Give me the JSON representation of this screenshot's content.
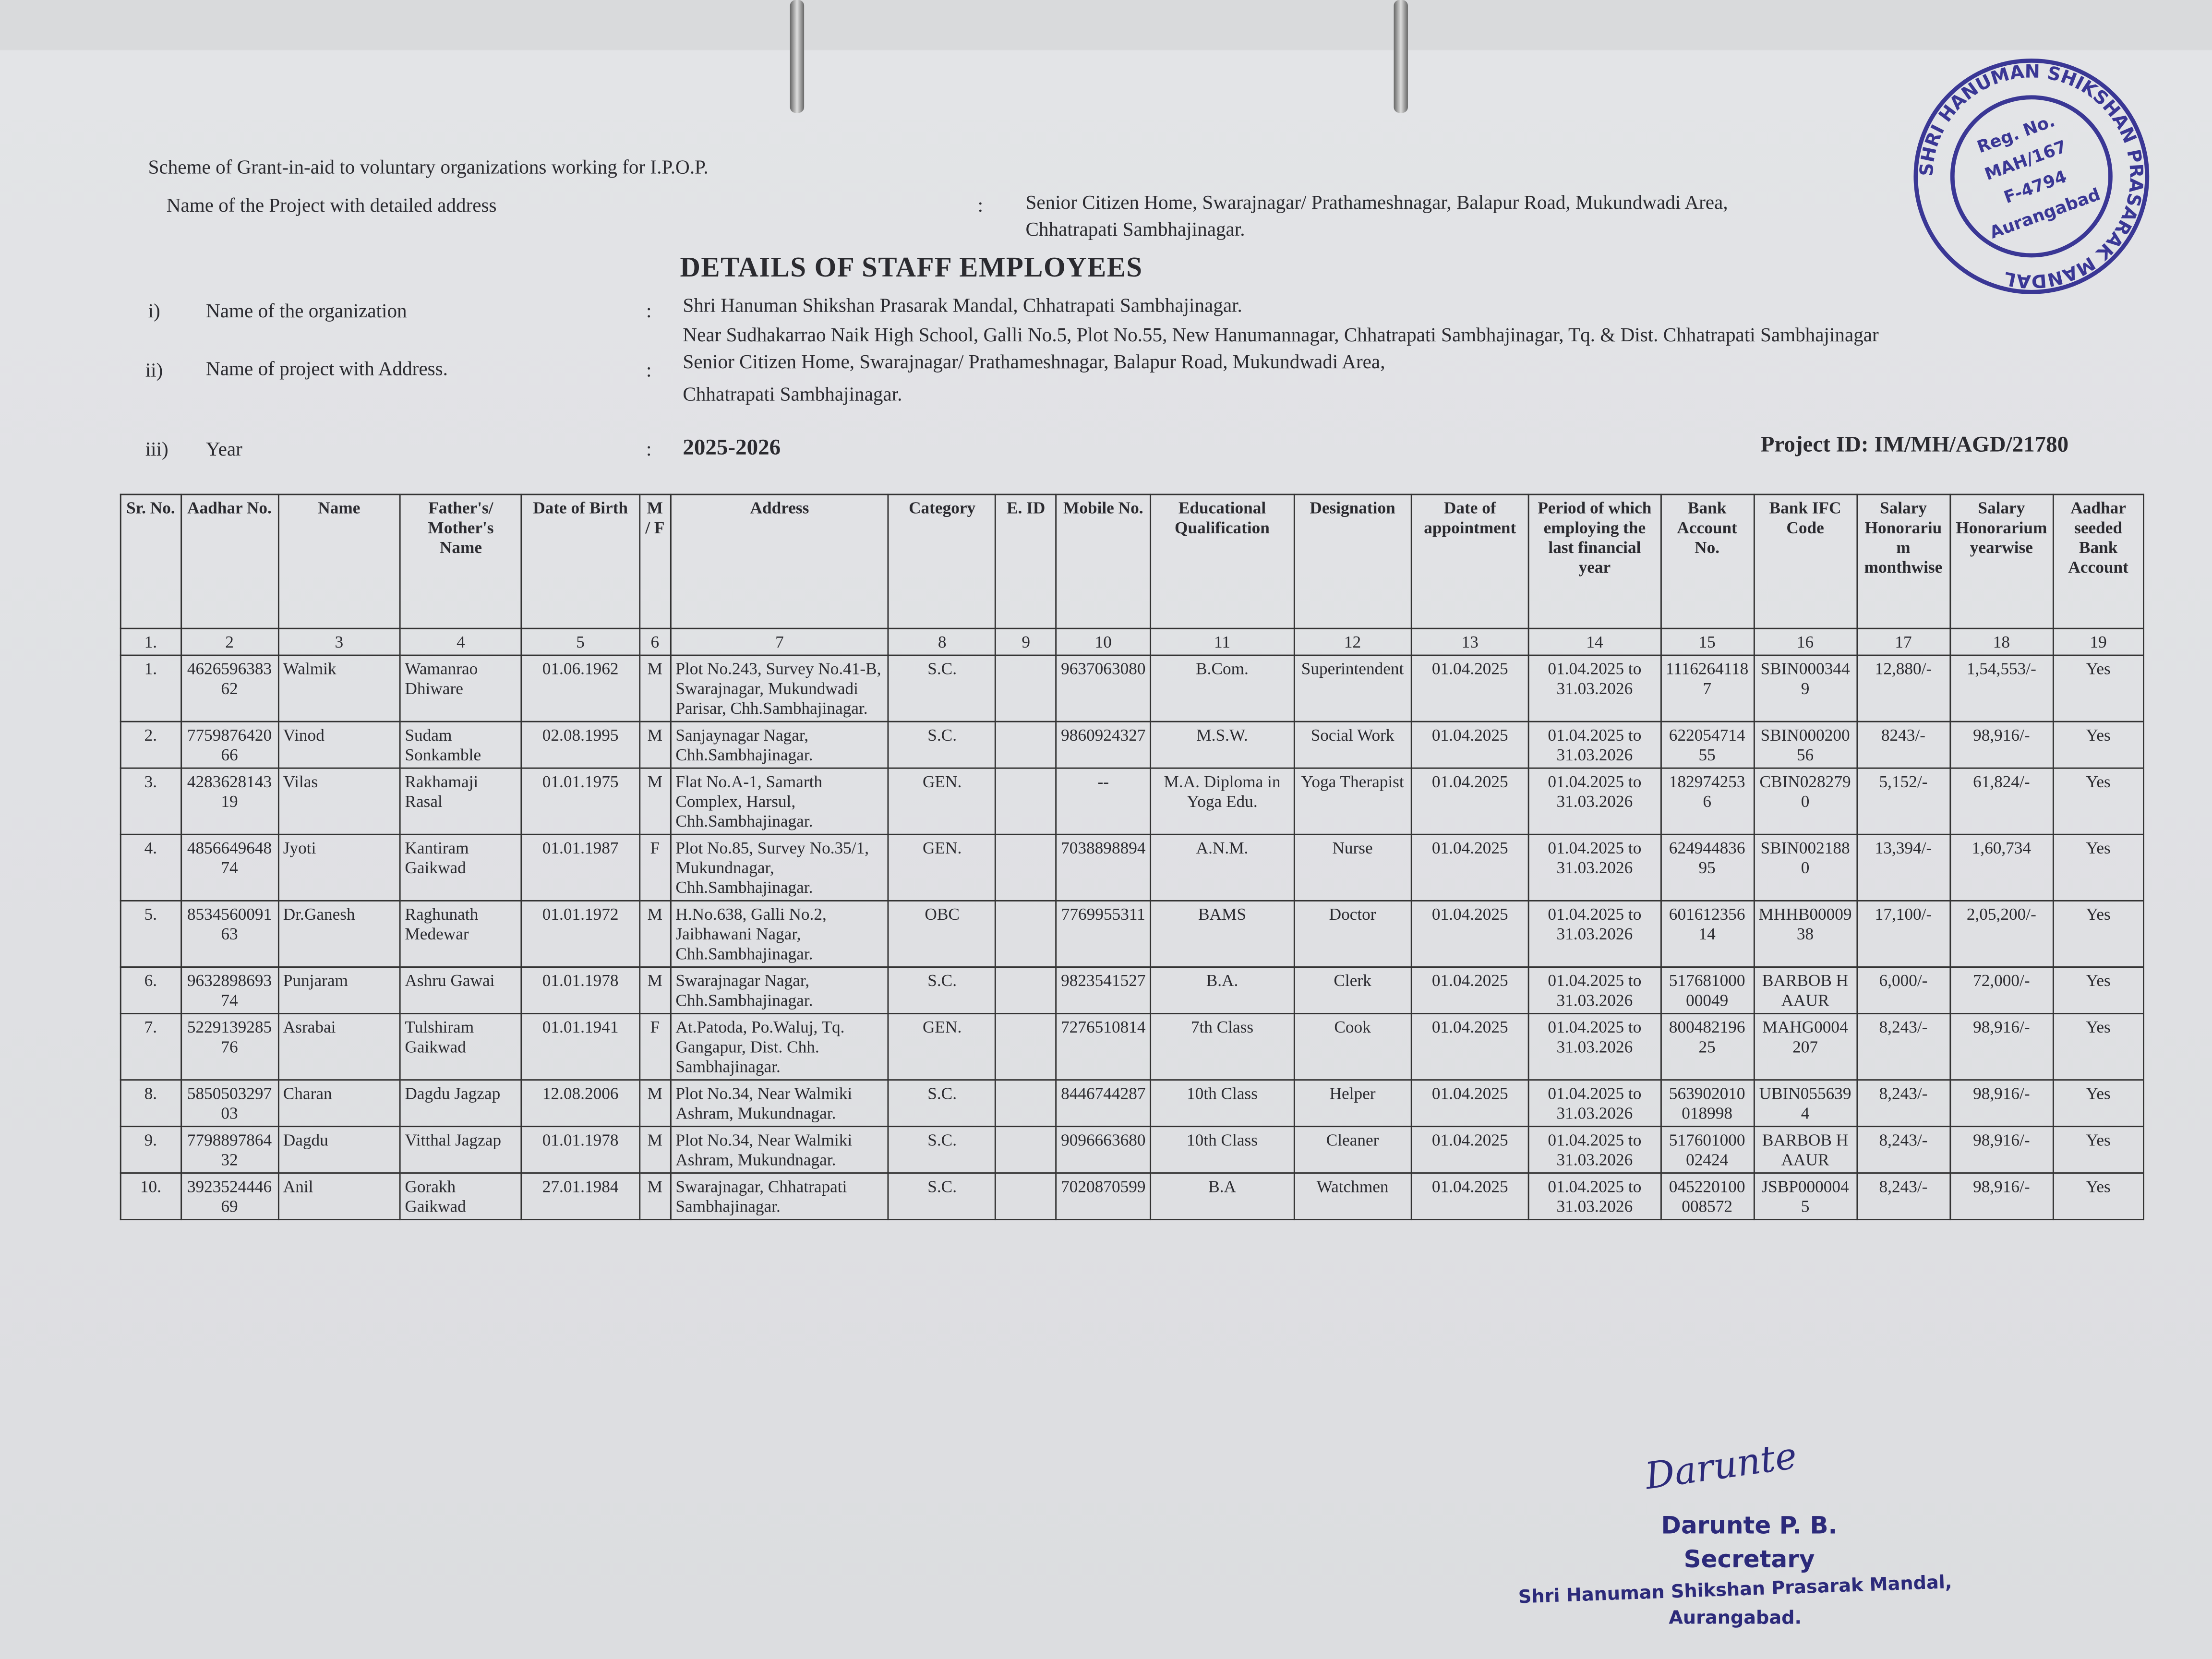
{
  "header": {
    "scheme": "Scheme of Grant-in-aid to voluntary organizations working for I.P.O.P.",
    "project_label": "Name of the Project with detailed address",
    "project_sep": ":",
    "project_address": [
      "Senior Citizen Home, Swarajnagar/ Prathameshnagar, Balapur Road, Mukundwadi Area,",
      "Chhatrapati Sambhajinagar."
    ]
  },
  "title": "DETAILS OF STAFF EMPLOYEES",
  "fields": [
    {
      "num": "i)",
      "label": "Name of the organization",
      "sep": ":",
      "value": [
        "Shri Hanuman Shikshan Prasarak Mandal, Chhatrapati Sambhajinagar.",
        "Near Sudhakarrao Naik High School, Galli No.5, Plot No.55, New Hanumannagar,  Chhatrapati Sambhajinagar, Tq. & Dist. Chhatrapati Sambhajinagar"
      ]
    },
    {
      "num": "ii)",
      "label": "Name of project with Address.",
      "sep": ":",
      "value": [
        "Senior Citizen Home, Swarajnagar/ Prathameshnagar, Balapur Road, Mukundwadi Area,",
        "Chhatrapati Sambhajinagar."
      ]
    },
    {
      "num": "iii)",
      "label": "Year",
      "sep": ":",
      "value": [
        "2025-2026"
      ]
    }
  ],
  "project_id": "Project ID: IM/MH/AGD/21780",
  "table": {
    "headers": [
      "Sr. No.",
      "Aadhar No.",
      "Name",
      "Father's/ Mother's Name",
      "Date of Birth",
      "M / F",
      "Address",
      "Category",
      "E. ID",
      "Mobile No.",
      "Educational Qualification",
      "Designation",
      "Date of appointment",
      "Period of which employing the last financial year",
      "Bank Account No.",
      "Bank IFC Code",
      "Salary Honorarium monthwise",
      "Salary Honorarium yearwise",
      "Aadhar seeded Bank Account"
    ],
    "numbers": [
      "1.",
      "2",
      "3",
      "4",
      "5",
      "6",
      "7",
      "8",
      "9",
      "10",
      "11",
      "12",
      "13",
      "14",
      "15",
      "16",
      "17",
      "18",
      "19"
    ],
    "rows": [
      [
        "1.",
        "462659638362",
        "Walmik",
        "Wamanrao Dhiware",
        "01.06.1962",
        "M",
        "Plot No.243, Survey No.41-B, Swarajnagar, Mukundwadi Parisar, Chh.Sambhajinagar.",
        "S.C.",
        null,
        "9637063080",
        "B.Com.",
        "Superintendent",
        "01.04.2025",
        "01.04.2025 to 31.03.2026",
        "11162641187",
        "SBIN0003449",
        "12,880/-",
        "1,54,553/-",
        "Yes"
      ],
      [
        "2.",
        "775987642066",
        "Vinod",
        "Sudam Sonkamble",
        "02.08.1995",
        "M",
        "Sanjaynagar Nagar, Chh.Sambhajinagar.",
        "S.C.",
        null,
        "9860924327",
        "M.S.W.",
        "Social Work",
        "01.04.2025",
        "01.04.2025 to 31.03.2026",
        "62205471455",
        "SBIN00020056",
        "8243/-",
        "98,916/-",
        "Yes"
      ],
      [
        "3.",
        "428362814319",
        "Vilas",
        "Rakhamaji Rasal",
        "01.01.1975",
        "M",
        "Flat No.A-1, Samarth Complex, Harsul, Chh.Sambhajinagar.",
        "GEN.",
        null,
        "--",
        "M.A. Diploma in Yoga Edu.",
        "Yoga Therapist",
        "01.04.2025",
        "01.04.2025 to 31.03.2026",
        "1829742536",
        "CBIN0282790",
        "5,152/-",
        "61,824/-",
        "Yes"
      ],
      [
        "4.",
        "485664964874",
        "Jyoti",
        "Kantiram Gaikwad",
        "01.01.1987",
        "F",
        "Plot No.85, Survey No.35/1, Mukundnagar, Chh.Sambhajinagar.",
        "GEN.",
        null,
        "7038898894",
        "A.N.M.",
        "Nurse",
        "01.04.2025",
        "01.04.2025 to 31.03.2026",
        "62494483695",
        "SBIN0021880",
        "13,394/-",
        "1,60,734",
        "Yes"
      ],
      [
        "5.",
        "853456009163",
        "Dr.Ganesh",
        "Raghunath Medewar",
        "01.01.1972",
        "M",
        "H.No.638, Galli No.2, Jaibhawani Nagar, Chh.Sambhajinagar.",
        "OBC",
        null,
        "7769955311",
        "BAMS",
        "Doctor",
        "01.04.2025",
        "01.04.2025 to 31.03.2026",
        "60161235614",
        "MHHB0000938",
        "17,100/-",
        "2,05,200/-",
        "Yes"
      ],
      [
        "6.",
        "963289869374",
        "Punjaram",
        "Ashru Gawai",
        "01.01.1978",
        "M",
        "Swarajnagar Nagar, Chh.Sambhajinagar.",
        "S.C.",
        null,
        "9823541527",
        "B.A.",
        "Clerk",
        "01.04.2025",
        "01.04.2025 to 31.03.2026",
        "51768100000049",
        "BARBOB HAAUR",
        "6,000/-",
        "72,000/-",
        "Yes"
      ],
      [
        "7.",
        "522913928576",
        "Asrabai",
        "Tulshiram Gaikwad",
        "01.01.1941",
        "F",
        "At.Patoda, Po.Waluj, Tq. Gangapur, Dist. Chh. Sambhajinagar.",
        "GEN.",
        null,
        "7276510814",
        "7th Class",
        "Cook",
        "01.04.2025",
        "01.04.2025 to 31.03.2026",
        "80048219625",
        "MAHG0004207",
        "8,243/-",
        "98,916/-",
        "Yes"
      ],
      [
        "8.",
        "585050329703",
        "Charan",
        "Dagdu Jagzap",
        "12.08.2006",
        "M",
        "Plot No.34, Near Walmiki Ashram, Mukundnagar.",
        "S.C.",
        null,
        "8446744287",
        "10th Class",
        "Helper",
        "01.04.2025",
        "01.04.2025 to 31.03.2026",
        "563902010018998",
        "UBIN0556394",
        "8,243/-",
        "98,916/-",
        "Yes"
      ],
      [
        "9.",
        "779889786432",
        "Dagdu",
        "Vitthal Jagzap",
        "01.01.1978",
        "M",
        "Plot No.34, Near Walmiki Ashram, Mukundnagar.",
        "S.C.",
        null,
        "9096663680",
        "10th Class",
        "Cleaner",
        "01.04.2025",
        "01.04.2025 to 31.03.2026",
        "51760100002424",
        "BARBOB HAAUR",
        "8,243/-",
        "98,916/-",
        "Yes"
      ],
      [
        "10.",
        "392352444669",
        "Anil",
        "Gorakh Gaikwad",
        "27.01.1984",
        "M",
        "Swarajnagar, Chhatrapati Sambhajinagar.",
        "S.C.",
        null,
        "7020870599",
        "B.A",
        "Watchmen",
        "01.04.2025",
        "01.04.2025 to 31.03.2026",
        "045220100008572",
        "JSBP0000045",
        "8,243/-",
        "98,916/-",
        "Yes"
      ]
    ]
  },
  "stamp": {
    "ring": "SHRI HANUMAN SHIKSHAN PRASARAK MANDAL",
    "lines": [
      "Reg. No.",
      "MAH/167",
      "F-4794",
      "Aurangabad"
    ]
  },
  "signature": {
    "mark": "Darunte",
    "name": "Darunte P. B.",
    "role": "Secretary",
    "org": "Shri Hanuman Shikshan Prasarak Mandal,",
    "city": "Aurangabad."
  }
}
